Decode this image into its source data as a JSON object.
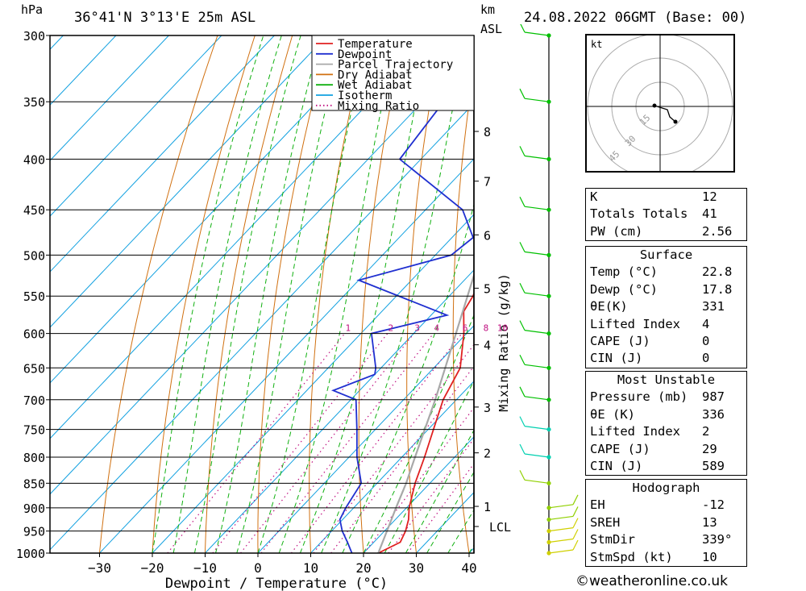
{
  "header": {
    "pressure_unit": "hPa",
    "location": "36°41'N  3°13'E  25m  ASL",
    "km_label": "km",
    "asl_label": "ASL",
    "datetime": "24.08.2022  06GMT  (Base: 00)"
  },
  "chart_data": {
    "type": "line",
    "chart_kind": "skew-T log-p sounding",
    "xlabel": "Dewpoint / Temperature (°C)",
    "ylabel": "hPa",
    "x_ticks": [
      -30,
      -20,
      -10,
      0,
      10,
      20,
      30,
      40
    ],
    "pressure_levels": [
      300,
      350,
      400,
      450,
      500,
      550,
      600,
      650,
      700,
      750,
      800,
      850,
      900,
      950,
      1000
    ],
    "altitude_ticks_km": [
      {
        "km": "8",
        "p": 375
      },
      {
        "km": "7",
        "p": 421
      },
      {
        "km": "6",
        "p": 477
      },
      {
        "km": "5",
        "p": 540
      },
      {
        "km": "4",
        "p": 616
      },
      {
        "km": "3",
        "p": 712
      },
      {
        "km": "2",
        "p": 792
      },
      {
        "km": "1",
        "p": 897
      }
    ],
    "lcl_label": "LCL",
    "lcl_pressure": 940,
    "mixing_ratio_label": "Mixing Ratio (g/kg)",
    "mixing_ratio_lines": [
      "1",
      "2",
      "3",
      "4",
      "6",
      "8",
      "10",
      "15",
      "20",
      "25"
    ],
    "legend": [
      "Temperature",
      "Dewpoint",
      "Parcel Trajectory",
      "Dry Adiabat",
      "Wet Adiabat",
      "Isotherm",
      "Mixing Ratio"
    ],
    "legend_position": "top-right",
    "colors": {
      "temperature": "#e02020",
      "dewpoint": "#2030d0",
      "parcel": "#a8a8a8",
      "dry": "#d07010",
      "wet": "#10b010",
      "isotherm": "#10a0e0",
      "mixing": "#c01080"
    },
    "series": [
      {
        "name": "Temperature",
        "points": [
          [
            1000,
            22.8
          ],
          [
            975,
            25
          ],
          [
            950,
            24
          ],
          [
            925,
            22.5
          ],
          [
            900,
            20.5
          ],
          [
            850,
            17.2
          ],
          [
            800,
            14.3
          ],
          [
            750,
            11
          ],
          [
            700,
            7.5
          ],
          [
            650,
            5
          ],
          [
            600,
            -0.5
          ],
          [
            570,
            -4.5
          ],
          [
            550,
            -5.5
          ],
          [
            500,
            -9.5
          ],
          [
            450,
            -16
          ],
          [
            400,
            -22
          ],
          [
            380,
            -26
          ],
          [
            350,
            -33
          ],
          [
            320,
            -40
          ],
          [
            300,
            -45
          ]
        ]
      },
      {
        "name": "Dewpoint",
        "points": [
          [
            1000,
            17.8
          ],
          [
            975,
            15
          ],
          [
            950,
            12
          ],
          [
            925,
            9.5
          ],
          [
            900,
            8.5
          ],
          [
            850,
            7
          ],
          [
            800,
            1.5
          ],
          [
            750,
            -3.5
          ],
          [
            700,
            -9
          ],
          [
            685,
            -15
          ],
          [
            660,
            -10
          ],
          [
            650,
            -11
          ],
          [
            600,
            -18
          ],
          [
            575,
            -7
          ],
          [
            530,
            -30
          ],
          [
            500,
            -17
          ],
          [
            480,
            -16
          ],
          [
            450,
            -23
          ],
          [
            400,
            -44
          ],
          [
            350,
            -46
          ],
          [
            300,
            -62
          ]
        ]
      },
      {
        "name": "Parcel Trajectory",
        "points": [
          [
            1000,
            22.8
          ],
          [
            940,
            20
          ],
          [
            900,
            18
          ],
          [
            850,
            15.5
          ],
          [
            800,
            12.5
          ],
          [
            700,
            6
          ],
          [
            600,
            -2
          ],
          [
            500,
            -11.5
          ],
          [
            400,
            -25
          ],
          [
            300,
            -45
          ]
        ]
      }
    ]
  },
  "winds": {
    "levels_hpa": [
      1000,
      975,
      950,
      925,
      900,
      850,
      800,
      750,
      700,
      650,
      600,
      550,
      500,
      450,
      400,
      350,
      300
    ],
    "colors": [
      "#d0d000",
      "#d0d000",
      "#d0d000",
      "#90d000",
      "#90d000",
      "#90d000",
      "#00d0b0",
      "#00d0b0",
      "#00c000",
      "#00c000",
      "#00c000",
      "#00c000",
      "#00c000",
      "#00c000",
      "#00c000",
      "#00c000",
      "#00c000"
    ]
  },
  "hodograph": {
    "unit": "kt",
    "rings": [
      "15",
      "30",
      "45"
    ]
  },
  "indices_table": {
    "rows": [
      {
        "label": "K",
        "value": "12"
      },
      {
        "label": "Totals Totals",
        "value": "41"
      },
      {
        "label": "PW (cm)",
        "value": "2.56"
      }
    ]
  },
  "surface_table": {
    "title": "Surface",
    "rows": [
      {
        "label": "Temp (°C)",
        "value": "22.8"
      },
      {
        "label": "Dewp (°C)",
        "value": "17.8"
      },
      {
        "label": "θE(K)",
        "value": "331"
      },
      {
        "label": "Lifted Index",
        "value": "4"
      },
      {
        "label": "CAPE (J)",
        "value": "0"
      },
      {
        "label": "CIN (J)",
        "value": "0"
      }
    ]
  },
  "unstable_table": {
    "title": "Most Unstable",
    "rows": [
      {
        "label": "Pressure (mb)",
        "value": "987"
      },
      {
        "label": "θE (K)",
        "value": "336"
      },
      {
        "label": "Lifted Index",
        "value": "2"
      },
      {
        "label": "CAPE (J)",
        "value": "29"
      },
      {
        "label": "CIN (J)",
        "value": "589"
      }
    ]
  },
  "hodo_table": {
    "title": "Hodograph",
    "rows": [
      {
        "label": "EH",
        "value": "-12"
      },
      {
        "label": "SREH",
        "value": "13"
      },
      {
        "label": "StmDir",
        "value": "339°"
      },
      {
        "label": "StmSpd (kt)",
        "value": "10"
      }
    ]
  },
  "footer": {
    "credit": "©weatheronline.co.uk"
  }
}
